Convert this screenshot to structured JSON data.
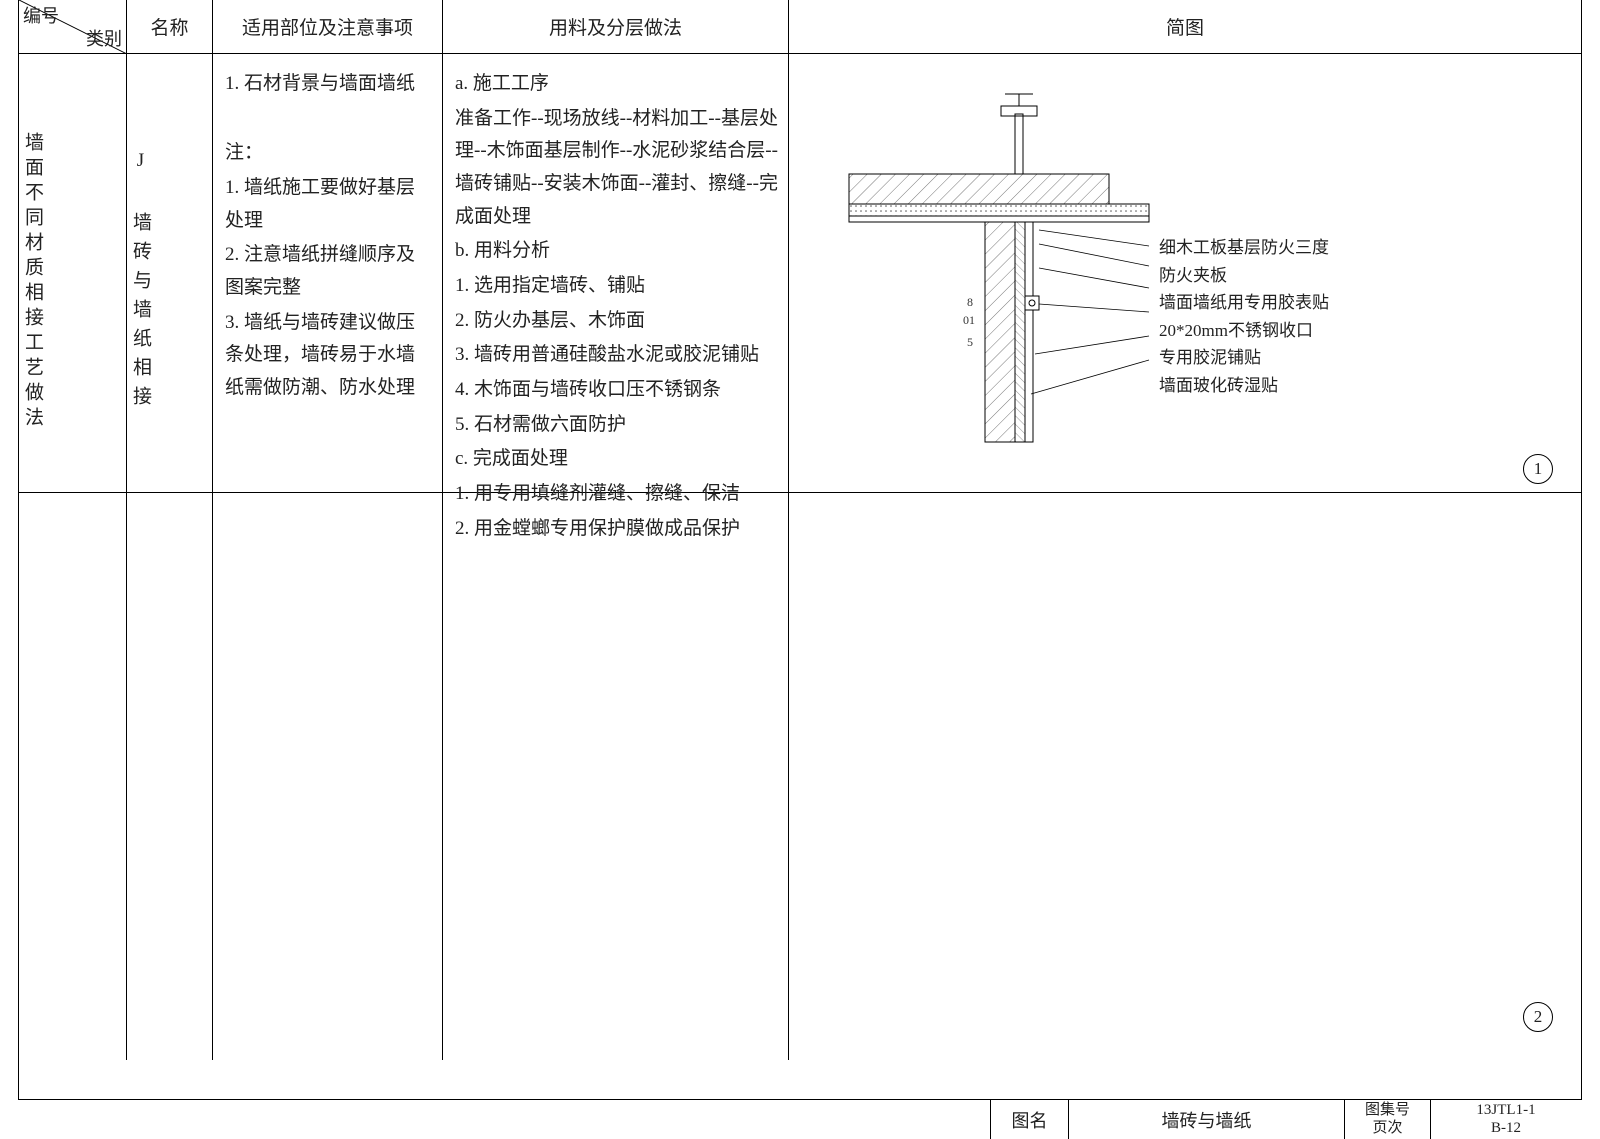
{
  "header": {
    "diag_top": "编号",
    "diag_bot": "类别",
    "name": "名称",
    "scope": "适用部位及注意事项",
    "method": "用料及分层做法",
    "diagram": "简图"
  },
  "row1": {
    "category_vertical": "墙面不同材质相接工艺做法",
    "name_vertical": "J 墙砖与墙纸相接",
    "scope_lines": [
      "1. 石材背景与墙面墙纸",
      "",
      "注：",
      "1. 墙纸施工要做好基层处理",
      "2. 注意墙纸拼缝顺序及图案完整",
      "3. 墙纸与墙砖建议做压条处理，墙砖易于水墙纸需做防潮、防水处理"
    ],
    "method_lines": [
      "a. 施工工序",
      "准备工作--现场放线--材料加工--基层处理--木饰面基层制作--水泥砂浆结合层--墙砖铺贴--安装木饰面--灌封、擦缝--完成面处理",
      "b. 用料分析",
      "1. 选用指定墙砖、铺贴",
      "2. 防火办基层、木饰面",
      "3. 墙砖用普通硅酸盐水泥或胶泥铺贴",
      "4. 木饰面与墙砖收口压不锈钢条",
      "5. 石材需做六面防护",
      "c. 完成面处理",
      "1. 用专用填缝剂灌缝、擦缝、保洁",
      "2. 用金螳螂专用保护膜做成品保护"
    ],
    "callouts": [
      "细木工板基层防火三度",
      "防火夹板",
      "墙面墙纸用专用胶表贴",
      "20*20mm不锈钢收口",
      "专用胶泥铺贴",
      "墙面玻化砖湿贴"
    ],
    "detail_dims": [
      "8",
      "01",
      "5"
    ],
    "circle1": "1",
    "circle2": "2"
  },
  "titleblock": {
    "label_name": "图名",
    "drawing_name": "墙砖与墙纸",
    "label_set_top": "图集号",
    "label_set_bot": "页次",
    "set_no": "13JTL1-1",
    "page_no": "B-12"
  },
  "colors": {
    "line": "#000000",
    "hatch": "#777777",
    "bg": "#ffffff"
  }
}
